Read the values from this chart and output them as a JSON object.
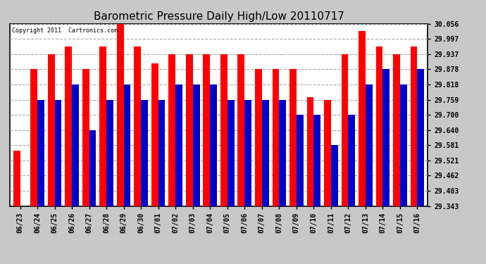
{
  "title": "Barometric Pressure Daily High/Low 20110717",
  "copyright_text": "Copyright 2011  Cartronics.com",
  "categories": [
    "06/23",
    "06/24",
    "06/25",
    "06/26",
    "06/27",
    "06/28",
    "06/29",
    "06/30",
    "07/01",
    "07/02",
    "07/03",
    "07/04",
    "07/05",
    "07/06",
    "07/07",
    "07/08",
    "07/09",
    "07/10",
    "07/11",
    "07/12",
    "07/13",
    "07/14",
    "07/15",
    "07/16"
  ],
  "highs": [
    29.56,
    29.878,
    29.937,
    29.967,
    29.878,
    29.967,
    30.056,
    29.967,
    29.9,
    29.937,
    29.937,
    29.937,
    29.937,
    29.937,
    29.878,
    29.878,
    29.878,
    29.77,
    29.759,
    29.937,
    30.027,
    29.967,
    29.937,
    29.967
  ],
  "lows": [
    29.343,
    29.759,
    29.759,
    29.818,
    29.64,
    29.759,
    29.818,
    29.759,
    29.759,
    29.818,
    29.818,
    29.818,
    29.759,
    29.759,
    29.759,
    29.759,
    29.7,
    29.7,
    29.58,
    29.7,
    29.818,
    29.878,
    29.818,
    29.878
  ],
  "bar_color_high": "#ff0000",
  "bar_color_low": "#0000cc",
  "fig_background": "#c8c8c8",
  "plot_background": "#ffffff",
  "yticks": [
    29.343,
    29.403,
    29.462,
    29.521,
    29.581,
    29.64,
    29.7,
    29.759,
    29.818,
    29.878,
    29.937,
    29.997,
    30.056
  ],
  "ymin": 29.343,
  "ymax": 30.056,
  "grid_color": "#aaaaaa",
  "title_fontsize": 11
}
